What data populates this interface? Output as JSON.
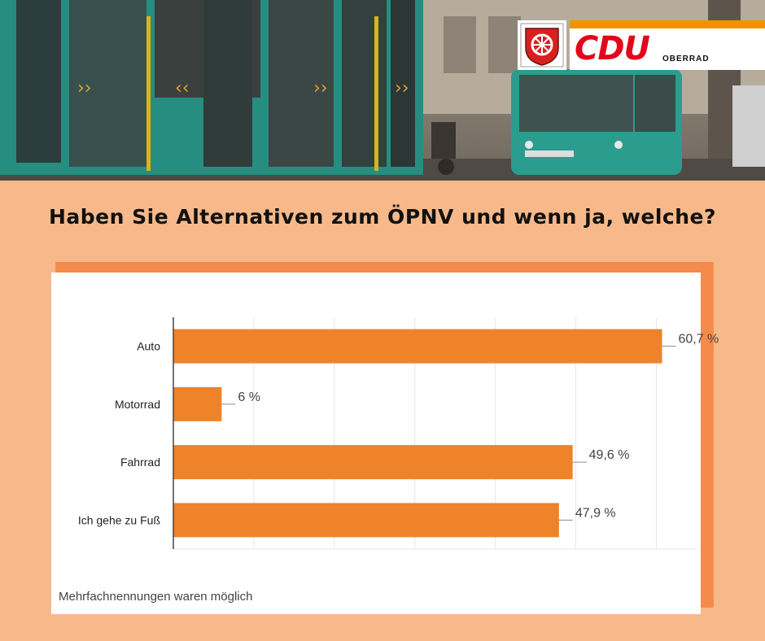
{
  "header": {
    "brand": "CDU",
    "brand_sub": "OBERRAD",
    "crest_icon": "frankfurt-crest-icon"
  },
  "headline": "Haben Sie Alternativen zum ÖPNV und wenn ja, welche?",
  "footnote": "Mehrfachnennungen waren möglich",
  "colors": {
    "background": "#f7b98a",
    "bar": "#ee8329",
    "card_shadow": "#f58b4b",
    "brand_red": "#e3051b",
    "brand_stripe": "#f39200"
  },
  "chart_data": {
    "type": "bar",
    "orientation": "horizontal",
    "categories": [
      "Auto",
      "Motorrad",
      "Fahrrad",
      "Ich gehe zu Fuß"
    ],
    "values": [
      60.7,
      6,
      49.6,
      47.9
    ],
    "value_labels": [
      "60,7 %",
      "6 %",
      "49,6 %",
      "47,9 %"
    ],
    "xlim": [
      0,
      65
    ],
    "grid": true,
    "unit": "%"
  }
}
